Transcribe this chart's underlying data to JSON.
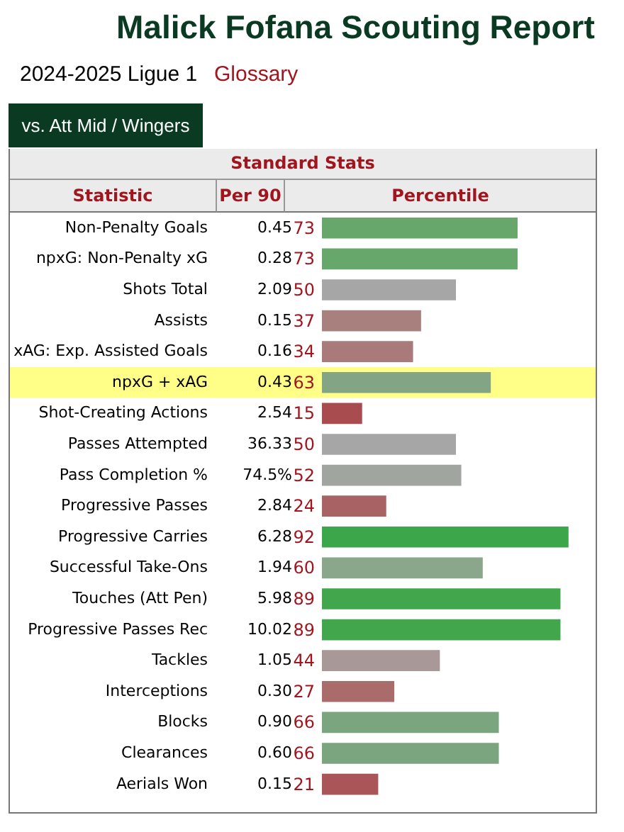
{
  "chart_data": {
    "type": "bar",
    "orientation": "horizontal",
    "title": "Malick Fofana Scouting Report",
    "subtitle": "2024-2025 Ligue 1",
    "categories": [
      "Non-Penalty Goals",
      "npxG: Non-Penalty xG",
      "Shots Total",
      "Assists",
      "xAG: Exp. Assisted Goals",
      "npxG + xAG",
      "Shot-Creating Actions",
      "Passes Attempted",
      "Pass Completion %",
      "Progressive Passes",
      "Progressive Carries",
      "Successful Take-Ons",
      "Touches (Att Pen)",
      "Progressive Passes Rec",
      "Tackles",
      "Interceptions",
      "Blocks",
      "Clearances",
      "Aerials Won"
    ],
    "values": [
      73,
      73,
      50,
      37,
      34,
      63,
      15,
      50,
      52,
      24,
      92,
      60,
      89,
      89,
      44,
      27,
      66,
      66,
      21
    ],
    "colors": [
      "#67a76b",
      "#67a76b",
      "#a6a6a6",
      "#a8807d",
      "#a87b7a",
      "#83a485",
      "#a84c50",
      "#a6a6a6",
      "#a0a69f",
      "#a86264",
      "#3ba64a",
      "#8aa78c",
      "#41a64c",
      "#41a64c",
      "#a89898",
      "#aa6b6b",
      "#7ba57f",
      "#7ba57f",
      "#aa5558"
    ],
    "data_labels": true,
    "tick_labels": "y",
    "bands": [
      {
        "axis": "y",
        "from": "npxG + xAG",
        "to": "npxG + xAG",
        "color": "#ffff88"
      }
    ],
    "annotations": [
      "Glossary",
      "vs. Att Mid / Wingers",
      "Standard Stats",
      "Statistic",
      "Per 90",
      "Percentile",
      "0.45",
      "0.28",
      "2.09",
      "0.15",
      "0.16",
      "0.43",
      "2.54",
      "36.33",
      "74.5%",
      "2.84",
      "6.28",
      "1.94",
      "5.98",
      "10.02",
      "1.05",
      "0.30",
      "0.90",
      "0.60",
      "0.15"
    ]
  }
}
